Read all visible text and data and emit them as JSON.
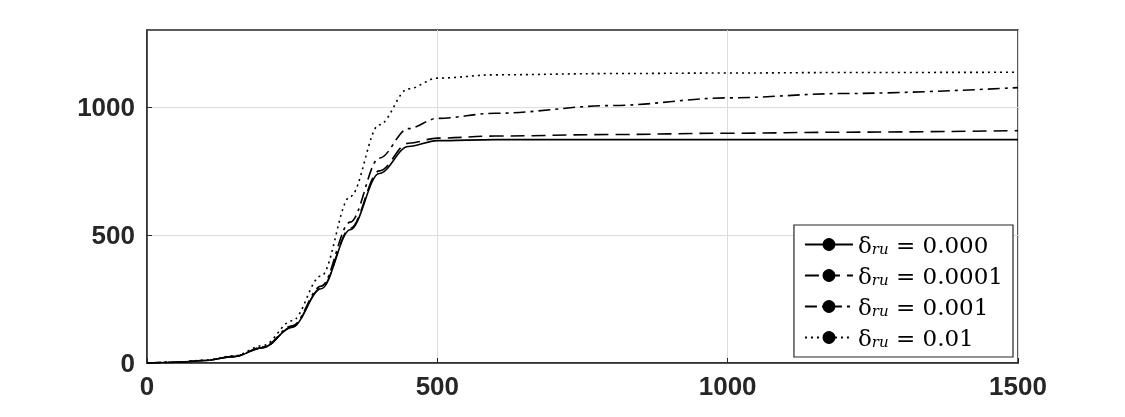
{
  "chart_data": {
    "type": "line",
    "x": [
      0,
      50,
      100,
      150,
      200,
      250,
      300,
      350,
      400,
      450,
      500,
      600,
      800,
      1000,
      1200,
      1500
    ],
    "series": [
      {
        "name": "δ$_{ru}$ = 0.000",
        "color": "#000000",
        "line_style": "solid",
        "values": [
          0,
          3,
          10,
          25,
          60,
          140,
          290,
          520,
          740,
          845,
          868,
          872,
          872,
          872,
          872,
          872
        ]
      },
      {
        "name": "δ$_{ru}$ = 0.0001",
        "color": "#000000",
        "line_style": "dashed",
        "values": [
          0,
          3,
          10,
          25,
          60,
          140,
          292,
          525,
          750,
          858,
          878,
          886,
          892,
          897,
          901,
          907
        ]
      },
      {
        "name": "δ$_{ru}$ = 0.001",
        "color": "#000000",
        "line_style": "dashdot",
        "values": [
          0,
          3,
          10,
          26,
          62,
          145,
          300,
          550,
          800,
          915,
          955,
          975,
          1005,
          1035,
          1052,
          1075
        ]
      },
      {
        "name": "δ$_{ru}$ = 0.01",
        "color": "#000000",
        "line_style": "dotted",
        "values": [
          0,
          3,
          11,
          28,
          68,
          165,
          340,
          650,
          930,
          1070,
          1112,
          1125,
          1130,
          1132,
          1134,
          1135
        ]
      }
    ],
    "xlim": [
      0,
      1500
    ],
    "xticks": [
      0,
      500,
      1000,
      1500
    ],
    "ylim": [
      0,
      1300
    ],
    "yticks": [
      0,
      500,
      1000
    ],
    "grid": true,
    "legend": "bottom right",
    "marker": "none"
  }
}
